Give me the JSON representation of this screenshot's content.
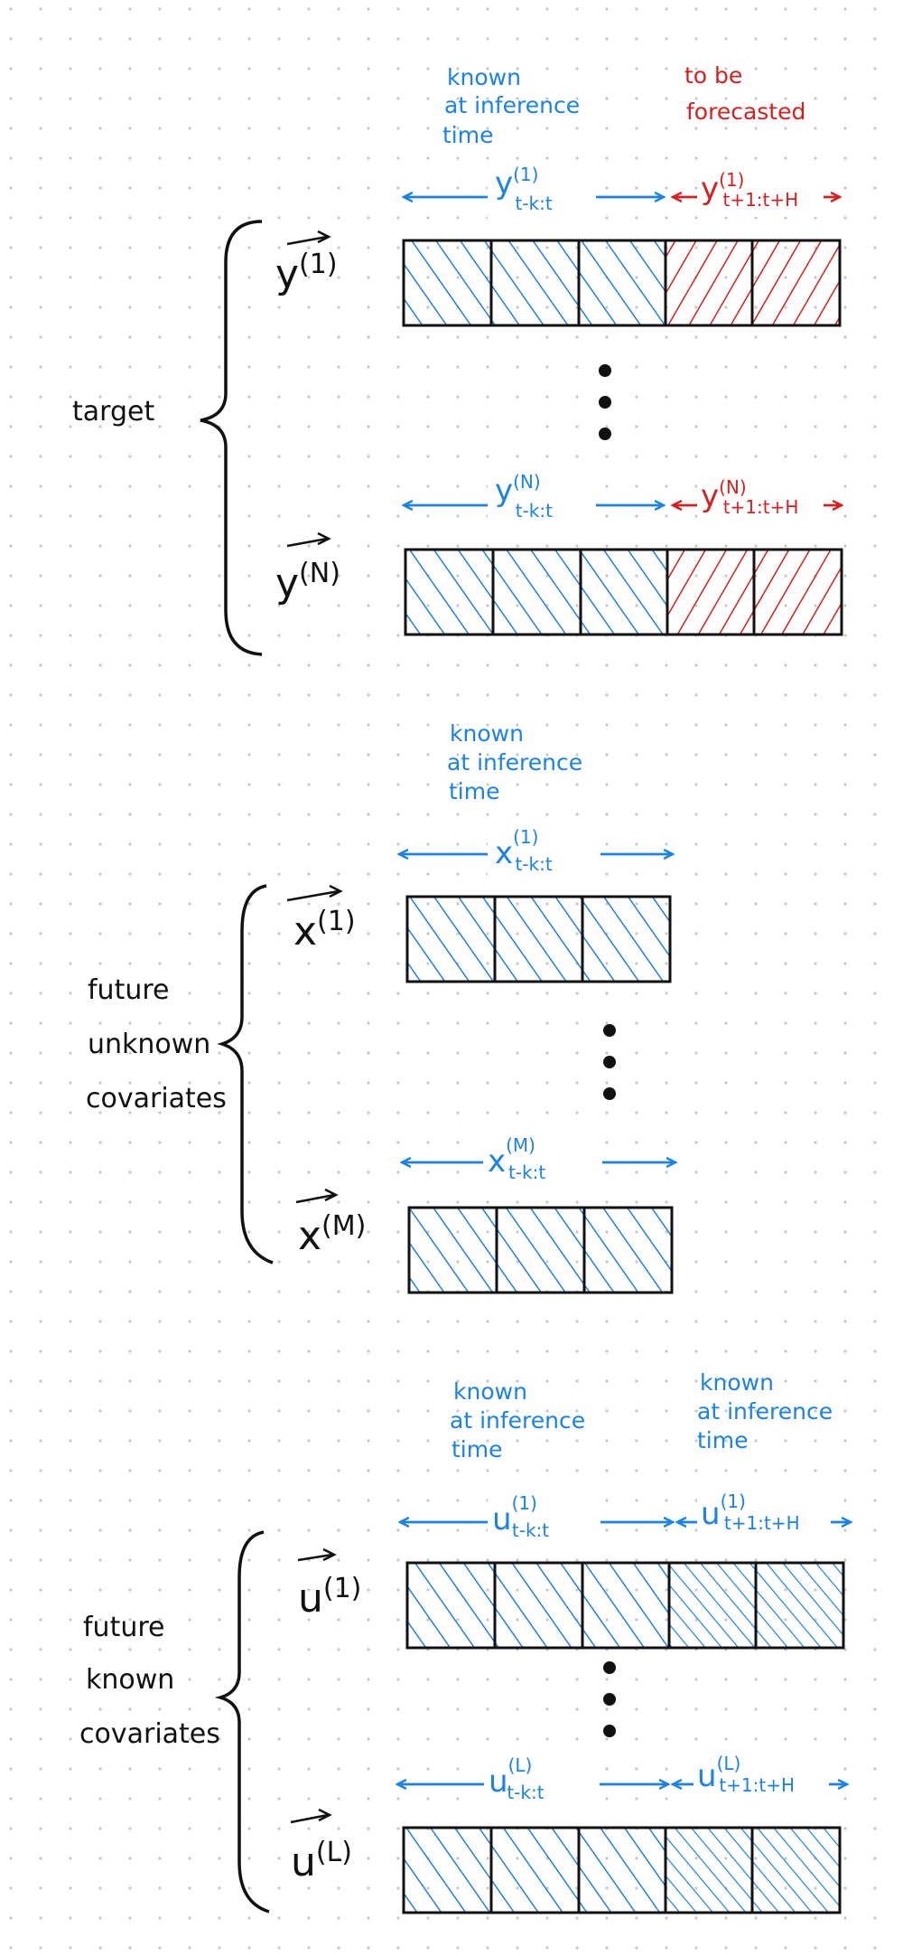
{
  "colors": {
    "known": "#1a82e8",
    "forecast": "#d81f1f",
    "ink": "#111111",
    "dot_grid": "#c8c8c8"
  },
  "target": {
    "label": "target",
    "notes": {
      "known": [
        "known",
        "at inference",
        "time"
      ],
      "forecast": [
        "to be",
        "forecasted"
      ]
    },
    "series": [
      {
        "label": "y",
        "sup": "(1)",
        "past_base": "y",
        "past_sup": "(1)",
        "past_sub": "t-k:t",
        "future_base": "y",
        "future_sup": "(1)",
        "future_sub": "t+1:t+H"
      },
      {
        "label": "y",
        "sup": "(N)",
        "past_base": "y",
        "past_sup": "(N)",
        "past_sub": "t-k:t",
        "future_base": "y",
        "future_sup": "(N)",
        "future_sub": "t+1:t+H"
      }
    ],
    "known_cells": 3,
    "future_cells": 2,
    "future_icon": "red-hatching"
  },
  "unknown": {
    "label_lines": [
      "future",
      "unknown",
      "covariates"
    ],
    "notes": {
      "known": [
        "known",
        "at inference",
        "time"
      ]
    },
    "series": [
      {
        "label": "x",
        "sup": "(1)",
        "past_base": "x",
        "past_sup": "(1)",
        "past_sub": "t-k:t"
      },
      {
        "label": "x",
        "sup": "(M)",
        "past_base": "x",
        "past_sup": "(M)",
        "past_sub": "t-k:t"
      }
    ],
    "known_cells": 3
  },
  "known": {
    "label_lines": [
      "future",
      "known",
      "covariates"
    ],
    "notes": {
      "past": [
        "known",
        "at inference",
        "time"
      ],
      "future": [
        "known",
        "at inference",
        "time"
      ]
    },
    "series": [
      {
        "label": "u",
        "sup": "(1)",
        "past_base": "u",
        "past_sup": "(1)",
        "past_sub": "t-k:t",
        "future_base": "u",
        "future_sup": "(1)",
        "future_sub": "t+1:t+H"
      },
      {
        "label": "u",
        "sup": "(L)",
        "past_base": "u",
        "past_sup": "(L)",
        "past_sub": "t-k:t",
        "future_base": "u",
        "future_sup": "(L)",
        "future_sub": "t+1:t+H"
      }
    ],
    "known_cells": 3,
    "future_cells": 2,
    "future_icon": "light-blue-hatching"
  }
}
